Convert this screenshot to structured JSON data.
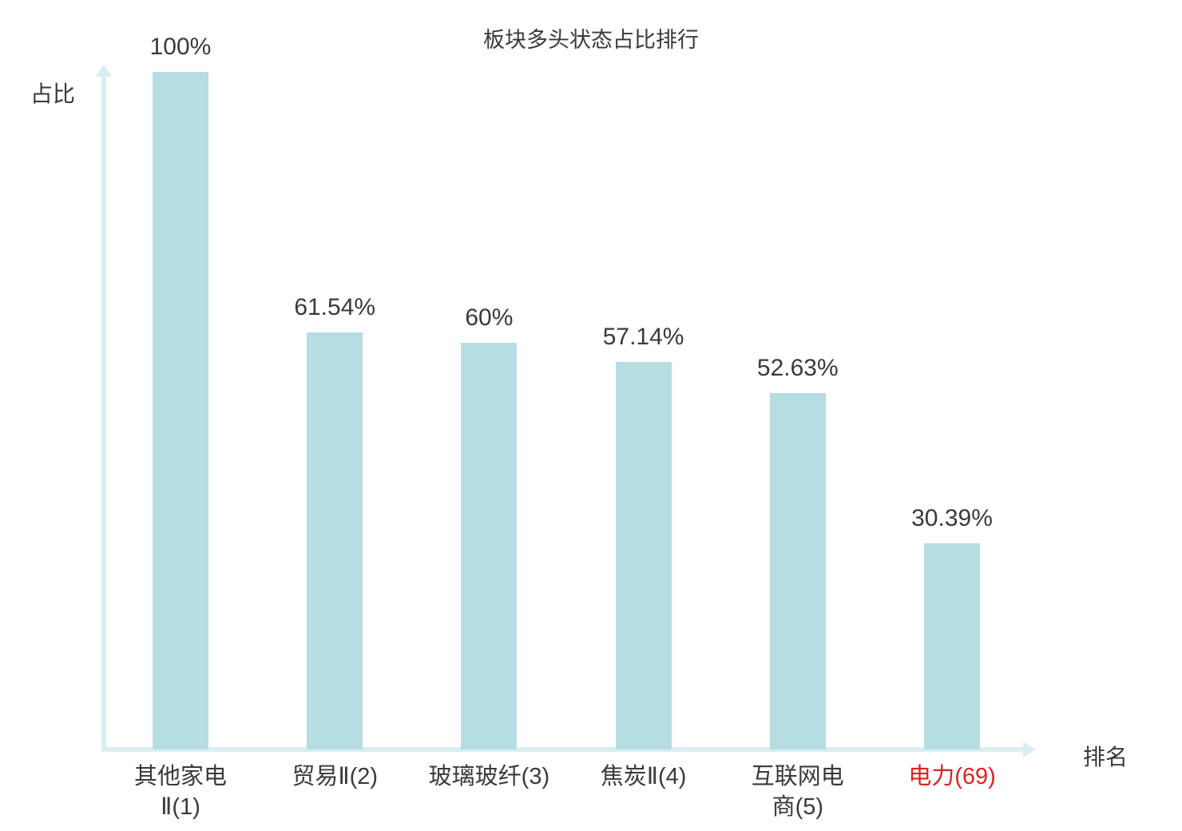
{
  "chart_data": {
    "type": "bar",
    "title": "板块多头状态占比排行",
    "xlabel": "排名",
    "ylabel": "占比",
    "categories": [
      "其他家电\nⅡ(1)",
      "贸易Ⅱ(2)",
      "玻璃玻纤(3)",
      "焦炭Ⅱ(4)",
      "互联网电\n商(5)",
      "电力(69)"
    ],
    "values": [
      100,
      61.54,
      60,
      57.14,
      52.63,
      30.39
    ],
    "value_labels": [
      "100%",
      "61.54%",
      "60%",
      "57.14%",
      "52.63%",
      "30.39%"
    ],
    "label_colors": [
      "#3a3a3a",
      "#3a3a3a",
      "#3a3a3a",
      "#3a3a3a",
      "#3a3a3a",
      "#e02020"
    ],
    "ylim": [
      0,
      100
    ],
    "bar_color": "#b5dde2",
    "axis_color": "#d9eef0",
    "text_color": "#3a3a3a",
    "highlight_color": "#e02020",
    "grid": false,
    "legend": "none"
  }
}
